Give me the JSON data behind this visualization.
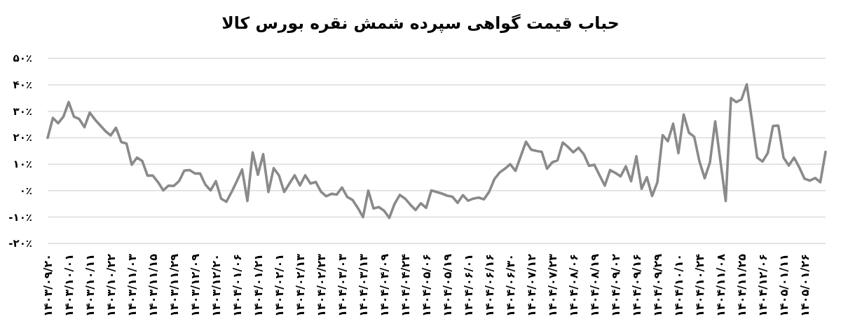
{
  "chart_data": {
    "type": "line",
    "title": "حباب قیمت گواهی سپرده شمش نقره بورس کالا",
    "categories": [
      "۱۴۰۳/۰۹/۲۰",
      null,
      null,
      null,
      "۱۴۰۳/۱۰/۰۱",
      null,
      null,
      null,
      "۱۴۰۳/۱۰/۱۱",
      null,
      null,
      null,
      "۱۴۰۳/۱۰/۲۲",
      null,
      null,
      null,
      "۱۴۰۳/۱۱/۰۳",
      null,
      null,
      null,
      "۱۴۰۳/۱۱/۱۵",
      null,
      null,
      null,
      "۱۴۰۳/۱۱/۲۹",
      null,
      null,
      null,
      "۱۴۰۳/۱۲/۰۹",
      null,
      null,
      null,
      "۱۴۰۳/۱۲/۲۰",
      null,
      null,
      null,
      "۱۴۰۴/۰۱/۰۶",
      null,
      null,
      null,
      "۱۴۰۴/۰۱/۲۱",
      null,
      null,
      null,
      "۱۴۰۴/۰۲/۰۱",
      null,
      null,
      null,
      "۱۴۰۴/۰۲/۱۳",
      null,
      null,
      null,
      "۱۴۰۴/۰۲/۲۳",
      null,
      null,
      null,
      "۱۴۰۴/۰۳/۰۳",
      null,
      null,
      null,
      "۱۴۰۴/۰۳/۱۳",
      null,
      null,
      null,
      "۱۴۰۴/۰۴/۰۹",
      null,
      null,
      null,
      "۱۴۰۴/۰۴/۲۴",
      null,
      null,
      null,
      "۱۴۰۴/۰۵/۰۶",
      null,
      null,
      null,
      "۱۴۰۴/۰۵/۱۹",
      null,
      null,
      null,
      "۱۴۰۴/۰۶/۰۱",
      null,
      null,
      null,
      "۱۴۰۴/۰۶/۱۶",
      null,
      null,
      null,
      "۱۴۰۴/۰۶/۳۰",
      null,
      null,
      null,
      "۱۴۰۴/۰۷/۱۲",
      null,
      null,
      null,
      "۱۴۰۴/۰۷/۲۳",
      null,
      null,
      null,
      "۱۴۰۴/۰۸/۰۶",
      null,
      null,
      null,
      "۱۴۰۴/۰۸/۱۹",
      null,
      null,
      null,
      "۱۴۰۴/۰۹/۰۲",
      null,
      null,
      null,
      "۱۴۰۴/۰۹/۱۶",
      null,
      null,
      null,
      "۱۴۰۴/۰۹/۲۹",
      null,
      null,
      null,
      "۱۴۰۴/۱۰/۱۰",
      null,
      null,
      null,
      "۱۴۰۴/۱۰/۲۴",
      null,
      null,
      null,
      "۱۴۰۴/۱۱/۰۸",
      null,
      null,
      null,
      "۱۴۰۴/۱۱/۲۵",
      null,
      null,
      null,
      "۱۴۰۴/۱۲/۰۶",
      null,
      null,
      null,
      "۱۴۰۵/۰۱/۱۱",
      null,
      null,
      null,
      "۱۴۰۵/۰۱/۲۶",
      null,
      null,
      null,
      null
    ],
    "values": [
      20.0,
      27.5,
      25.5,
      28.0,
      33.5,
      28.0,
      27.1,
      24.0,
      29.5,
      26.9,
      24.7,
      22.5,
      20.9,
      23.8,
      18.4,
      17.8,
      9.8,
      12.5,
      11.2,
      5.7,
      5.7,
      3.2,
      0.1,
      1.9,
      1.8,
      3.6,
      7.6,
      7.8,
      6.5,
      6.5,
      2.3,
      0.1,
      3.6,
      -3.0,
      -4.2,
      -0.5,
      3.6,
      8.0,
      -3.9,
      14.5,
      6.0,
      13.8,
      -0.5,
      8.5,
      5.8,
      -0.5,
      2.7,
      5.8,
      2.0,
      5.8,
      2.7,
      3.3,
      -0.4,
      -2.1,
      -1.2,
      -1.5,
      1.2,
      -2.4,
      -3.5,
      -6.5,
      -10.0,
      0.0,
      -6.7,
      -6.2,
      -7.6,
      -10.3,
      -5.0,
      -1.6,
      -3.0,
      -5.3,
      -7.3,
      -4.8,
      -6.5,
      0.1,
      -0.5,
      -1.1,
      -1.9,
      -2.3,
      -4.6,
      -1.7,
      -3.8,
      -3.0,
      -2.6,
      -3.3,
      -0.4,
      4.4,
      6.9,
      8.3,
      10.0,
      7.5,
      13.0,
      18.5,
      15.5,
      15.0,
      14.7,
      8.3,
      10.7,
      11.5,
      18.2,
      16.5,
      14.5,
      16.2,
      13.8,
      9.4,
      9.8,
      5.8,
      1.9,
      7.8,
      6.7,
      5.4,
      9.2,
      3.6,
      13.0,
      0.7,
      5.1,
      -2.0,
      3.2,
      21.0,
      18.7,
      25.3,
      14.2,
      28.8,
      21.9,
      20.4,
      11.1,
      4.7,
      10.7,
      26.2,
      11.1,
      -3.9,
      35.0,
      33.5,
      34.5,
      40.2,
      26.6,
      12.5,
      11.0,
      14.2,
      24.5,
      24.6,
      12.5,
      9.5,
      12.5,
      8.8,
      4.5,
      3.8,
      4.8,
      3.2,
      14.7
    ],
    "color": "#8a8a8a",
    "ylim": [
      -20,
      50
    ],
    "yticks": [
      {
        "value": -20,
        "label": "-۲۰٪"
      },
      {
        "value": -10,
        "label": "-۱۰٪"
      },
      {
        "value": 0,
        "label": "۰٪"
      },
      {
        "value": 10,
        "label": "۱۰٪"
      },
      {
        "value": 20,
        "label": "۲۰٪"
      },
      {
        "value": 30,
        "label": "۳۰٪"
      },
      {
        "value": 40,
        "label": "۴۰٪"
      },
      {
        "value": 50,
        "label": "۵۰٪"
      }
    ],
    "grid": "y"
  }
}
